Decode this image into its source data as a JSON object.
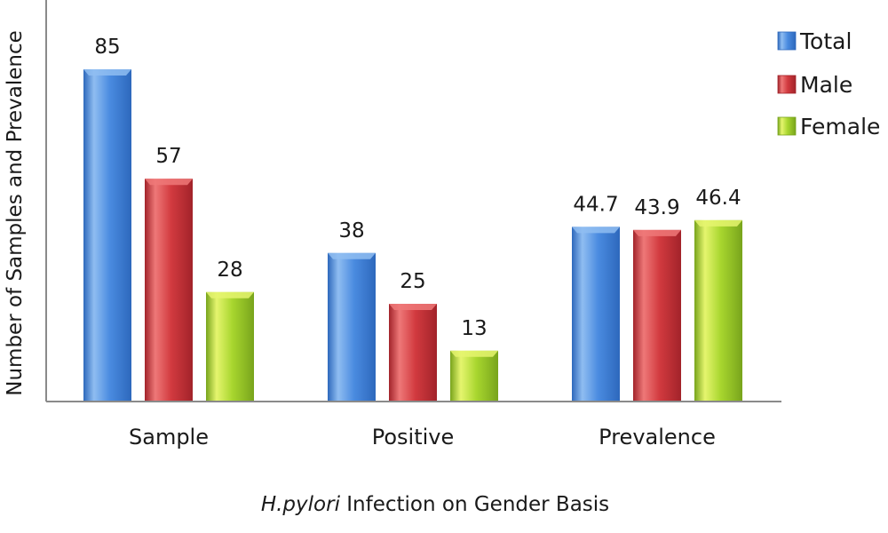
{
  "chart_data": {
    "type": "bar",
    "categories": [
      "Sample",
      "Positive",
      "Prevalence"
    ],
    "series": [
      {
        "name": "Total",
        "values": [
          85,
          38,
          44.7
        ],
        "value_labels": [
          "85",
          "38",
          "44.7"
        ]
      },
      {
        "name": "Male",
        "values": [
          57,
          25,
          43.9
        ],
        "value_labels": [
          "57",
          "25",
          "43.9"
        ]
      },
      {
        "name": "Female",
        "values": [
          28,
          13,
          46.4
        ],
        "value_labels": [
          "28",
          "13",
          "46.4"
        ]
      }
    ],
    "colors": {
      "Total": {
        "light": "#8fbdf1",
        "mid": "#4a8be0",
        "dark": "#2d68bc"
      },
      "Male": {
        "light": "#ee7878",
        "mid": "#d23a3f",
        "dark": "#a2232a"
      },
      "Female": {
        "light": "#e5f56e",
        "mid": "#a8d62e",
        "dark": "#78a41c"
      }
    },
    "xlabel": {
      "italic": "H.pylori",
      "rest": " Infection on Gender Basis"
    },
    "ylabel": "Number of Samples and Prevalence",
    "ylim": [
      0,
      100
    ],
    "grid": false,
    "legend_position": "top-right"
  }
}
